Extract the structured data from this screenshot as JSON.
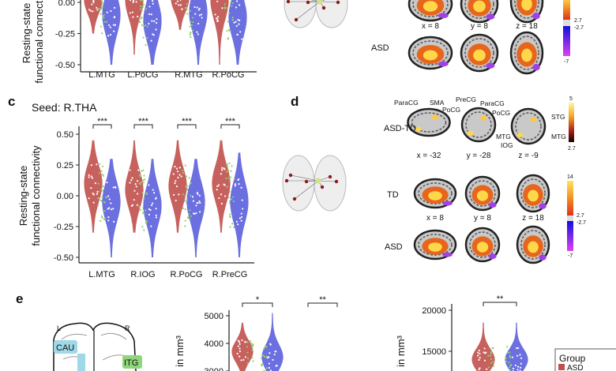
{
  "panels": {
    "c": "c",
    "d": "d",
    "e": "e"
  },
  "chart_data": [
    {
      "id": "top",
      "type": "violin",
      "ylabel_lines": [
        "Resting-state",
        "functional connectivity"
      ],
      "yticks": [
        "0.00",
        "-0.25",
        "-0.50"
      ],
      "ytick_values": [
        0,
        -0.25,
        -0.5
      ],
      "categories": [
        "L.MTG",
        "L.PoCG",
        "R.MTG",
        "R.PoCG"
      ],
      "series": [
        {
          "name": "ASD",
          "color": "#c0504d",
          "center": [
            0.02,
            0.02,
            0.03,
            0.02
          ],
          "min": [
            -0.25,
            -0.42,
            -0.22,
            -0.5
          ],
          "max": [
            0.3,
            0.3,
            0.3,
            0.3
          ]
        },
        {
          "name": "TD",
          "color": "#5b5fdc",
          "center": [
            -0.1,
            -0.15,
            -0.08,
            -0.12
          ],
          "min": [
            -0.5,
            -0.5,
            -0.5,
            -0.5
          ],
          "max": [
            0.3,
            0.3,
            0.3,
            0.3
          ]
        }
      ]
    },
    {
      "id": "c",
      "type": "violin",
      "title": "Seed: R.THA",
      "ylabel_lines": [
        "Resting-state",
        "functional connectivity"
      ],
      "yticks": [
        "0.50",
        "0.25",
        "0.00",
        "-0.25",
        "-0.50"
      ],
      "ytick_values": [
        0.5,
        0.25,
        0,
        -0.25,
        -0.5
      ],
      "categories": [
        "L.MTG",
        "R.IOG",
        "R.PoCG",
        "R.PreCG"
      ],
      "significance": [
        "***",
        "***",
        "***",
        "***"
      ],
      "series": [
        {
          "name": "ASD",
          "color": "#c0504d",
          "center": [
            0.1,
            0.05,
            0.08,
            0.1
          ],
          "min": [
            -0.3,
            -0.3,
            -0.3,
            -0.3
          ],
          "max": [
            0.45,
            0.45,
            0.45,
            0.45
          ]
        },
        {
          "name": "TD",
          "color": "#5b5fdc",
          "center": [
            -0.05,
            -0.08,
            -0.05,
            -0.05
          ],
          "min": [
            -0.5,
            -0.5,
            -0.5,
            -0.5
          ],
          "max": [
            0.3,
            0.3,
            0.3,
            0.35
          ]
        }
      ]
    },
    {
      "id": "e-mid",
      "type": "violin",
      "ylabel": "in mm³",
      "yticks": [
        "5000",
        "4000",
        "3000"
      ],
      "ytick_values": [
        5000,
        4000,
        3000
      ],
      "significance": [
        "*",
        "**"
      ],
      "series": [
        {
          "name": "ASD",
          "color": "#c0504d",
          "center": [
            3700
          ],
          "min": [
            2800
          ],
          "max": [
            4750
          ]
        },
        {
          "name": "TD",
          "color": "#5b5fdc",
          "center": [
            3500
          ],
          "min": [
            2800
          ],
          "max": [
            5100
          ]
        }
      ]
    },
    {
      "id": "e-right",
      "type": "violin",
      "ylabel": "in mm³",
      "yticks": [
        "20000",
        "15000"
      ],
      "ytick_values": [
        20000,
        15000
      ],
      "significance": [
        "**"
      ],
      "series": [
        {
          "name": "ASD",
          "color": "#c0504d",
          "center": [
            14000
          ],
          "min": [
            12000
          ],
          "max": [
            18500
          ]
        },
        {
          "name": "TD",
          "color": "#5b5fdc",
          "center": [
            14000
          ],
          "min": [
            12000
          ],
          "max": [
            18500
          ]
        }
      ]
    }
  ],
  "brain_maps": {
    "top": {
      "coords": [
        "x = 8",
        "y = 8",
        "z = 18"
      ],
      "row_label": "ASD",
      "colorbar": [
        "2.7",
        "-2.7",
        "-7"
      ]
    },
    "d": {
      "rows": [
        "ASD-TD",
        "TD",
        "ASD"
      ],
      "coords_diff": [
        "x = -32",
        "y = -28",
        "z = -9"
      ],
      "coords_group": [
        "x = 8",
        "y = 8",
        "z = 18"
      ],
      "regions": [
        "ParaCG",
        "SMA",
        "PreCG",
        "PoCG",
        "ParaCG",
        "PoCG",
        "MTG",
        "IOG",
        "STG",
        "MTG"
      ],
      "colorbar_diff": [
        "5",
        "2.7"
      ],
      "colorbar_group": [
        "14",
        "2.7",
        "-2.7",
        "-7"
      ]
    },
    "e": {
      "hemispheres": [
        "L",
        "R"
      ],
      "regions": [
        "CAU",
        "ITG"
      ]
    }
  },
  "legend": {
    "title": "Group",
    "items": [
      {
        "label": "ASD",
        "color": "#c0504d"
      }
    ]
  }
}
